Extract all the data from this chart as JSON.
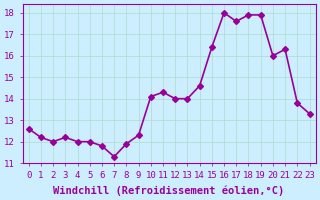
{
  "x": [
    0,
    1,
    2,
    3,
    4,
    5,
    6,
    7,
    8,
    9,
    10,
    11,
    12,
    13,
    14,
    15,
    16,
    17,
    18,
    19,
    20,
    21,
    22,
    23
  ],
  "y": [
    12.6,
    12.2,
    12.0,
    12.2,
    12.0,
    12.0,
    11.8,
    11.3,
    11.9,
    12.3,
    14.1,
    14.3,
    14.0,
    14.0,
    14.6,
    16.4,
    18.0,
    17.6,
    17.9,
    17.9,
    16.0,
    16.3,
    13.8,
    13.3
  ],
  "ylim": [
    11,
    18.4
  ],
  "yticks": [
    11,
    12,
    13,
    14,
    15,
    16,
    17,
    18
  ],
  "line_color": "#990099",
  "marker": "D",
  "marker_size": 3,
  "line_width": 1.2,
  "bg_color": "#cceeff",
  "grid_color": "#aaddcc",
  "xlabel": "Windchill (Refroidissement éolien,°C)",
  "xlabel_color": "#990099",
  "tick_color": "#990099",
  "xlabel_fontsize": 7.5,
  "tick_fontsize": 6.5,
  "xlim": [
    -0.5,
    23.5
  ]
}
